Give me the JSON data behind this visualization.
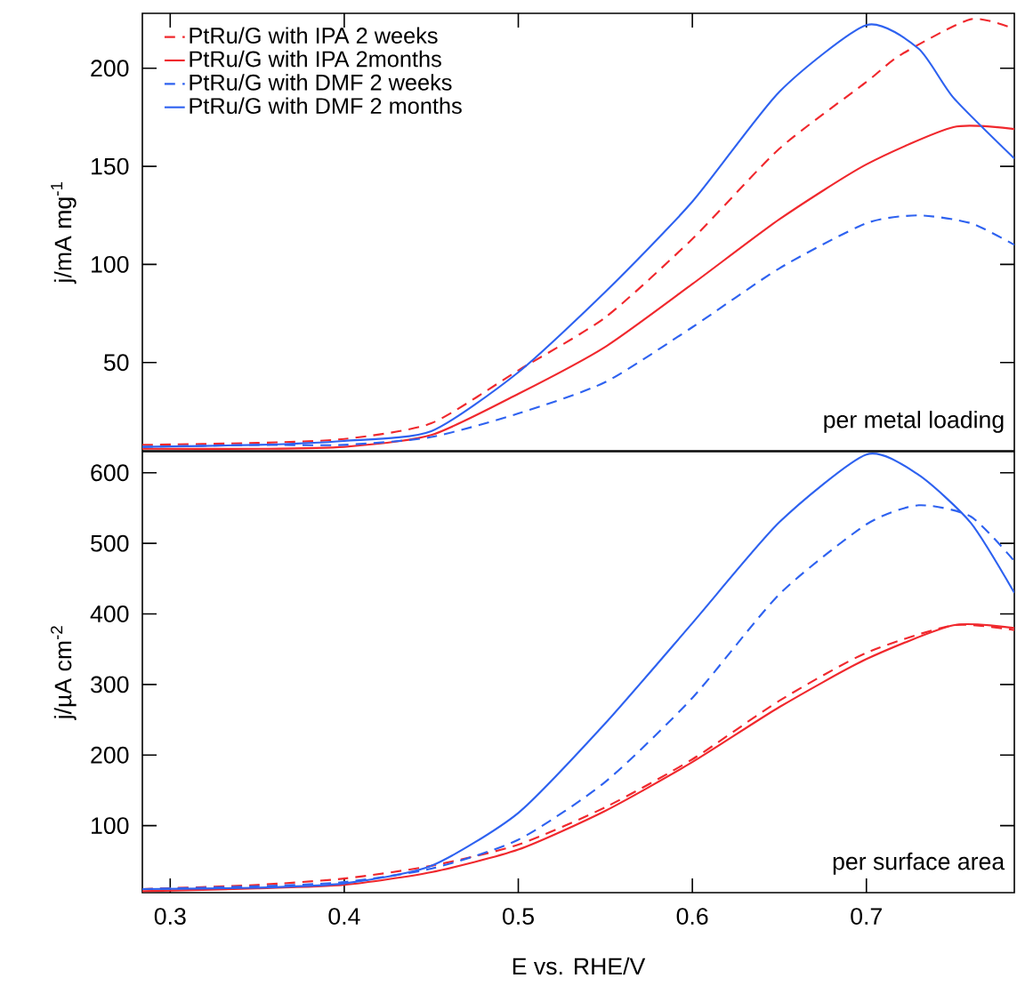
{
  "chart_data": [
    {
      "type": "line",
      "ylabel": "j/mA mg$^{-1}$",
      "xlim": [
        0.284,
        0.785
      ],
      "ylim": [
        5,
        228
      ],
      "xticks": [
        0.3,
        0.4,
        0.5,
        0.6,
        0.7
      ],
      "yticks": [
        50,
        100,
        150,
        200
      ],
      "tick_labels": "y",
      "legend": "top left",
      "grid": false,
      "annotations": [
        "per metal loading"
      ],
      "series": [
        {
          "name": "PtRu/G with IPA 2 weeks",
          "color": "#f0282d",
          "line_style": "dashed",
          "x": [
            0.284,
            0.35,
            0.4,
            0.45,
            0.5,
            0.55,
            0.6,
            0.65,
            0.7,
            0.72,
            0.76,
            0.785
          ],
          "values": [
            8,
            9,
            11,
            19,
            46,
            73,
            113,
            159,
            193,
            207,
            225,
            220
          ]
        },
        {
          "name": "PtRu/G with IPA 2months",
          "color": "#f0282d",
          "line_style": "solid",
          "x": [
            0.284,
            0.35,
            0.4,
            0.45,
            0.5,
            0.55,
            0.6,
            0.65,
            0.7,
            0.75,
            0.785
          ],
          "values": [
            6,
            6,
            7,
            13,
            34,
            58,
            90,
            123,
            151,
            170,
            169
          ]
        },
        {
          "name": "PtRu/G with DMF 2 weeks",
          "color": "#2e62f0",
          "line_style": "dashed",
          "x": [
            0.284,
            0.35,
            0.4,
            0.45,
            0.5,
            0.55,
            0.6,
            0.65,
            0.7,
            0.73,
            0.76,
            0.785
          ],
          "values": [
            7,
            8,
            8,
            12,
            24,
            40,
            68,
            98,
            121,
            125,
            121,
            110
          ]
        },
        {
          "name": "PtRu/G with DMF 2 months",
          "color": "#2e62f0",
          "line_style": "solid",
          "x": [
            0.284,
            0.35,
            0.4,
            0.45,
            0.5,
            0.55,
            0.6,
            0.65,
            0.7,
            0.73,
            0.75,
            0.785
          ],
          "values": [
            7,
            8,
            10,
            15,
            45,
            86,
            132,
            188,
            222,
            210,
            185,
            154
          ]
        }
      ]
    },
    {
      "type": "line",
      "ylabel": "j/µA cm$^{-2}$",
      "xlabel": "E vs. RHE/V",
      "xlim": [
        0.284,
        0.785
      ],
      "ylim": [
        5,
        630
      ],
      "xticks": [
        0.3,
        0.4,
        0.5,
        0.6,
        0.7
      ],
      "yticks": [
        100,
        200,
        300,
        400,
        500,
        600
      ],
      "grid": false,
      "annotations": [
        "per surface area"
      ],
      "series": [
        {
          "color": "#f0282d",
          "line_style": "dashed",
          "x": [
            0.284,
            0.35,
            0.4,
            0.45,
            0.5,
            0.55,
            0.6,
            0.65,
            0.7,
            0.75,
            0.785
          ],
          "values": [
            10,
            16,
            25,
            43,
            73,
            126,
            194,
            277,
            345,
            384,
            377
          ]
        },
        {
          "color": "#f0282d",
          "line_style": "solid",
          "x": [
            0.284,
            0.35,
            0.4,
            0.45,
            0.5,
            0.55,
            0.6,
            0.65,
            0.7,
            0.75,
            0.785
          ],
          "values": [
            7,
            11,
            16,
            34,
            66,
            121,
            190,
            268,
            336,
            384,
            380
          ]
        },
        {
          "color": "#2e62f0",
          "line_style": "dashed",
          "x": [
            0.284,
            0.35,
            0.4,
            0.45,
            0.5,
            0.55,
            0.6,
            0.65,
            0.7,
            0.73,
            0.76,
            0.785
          ],
          "values": [
            10,
            14,
            20,
            39,
            80,
            162,
            281,
            428,
            527,
            554,
            538,
            475
          ]
        },
        {
          "color": "#2e62f0",
          "line_style": "solid",
          "x": [
            0.284,
            0.35,
            0.4,
            0.45,
            0.5,
            0.55,
            0.6,
            0.65,
            0.7,
            0.73,
            0.76,
            0.785
          ],
          "values": [
            10,
            12,
            18,
            43,
            118,
            245,
            387,
            530,
            626,
            597,
            529,
            430
          ]
        }
      ]
    }
  ]
}
